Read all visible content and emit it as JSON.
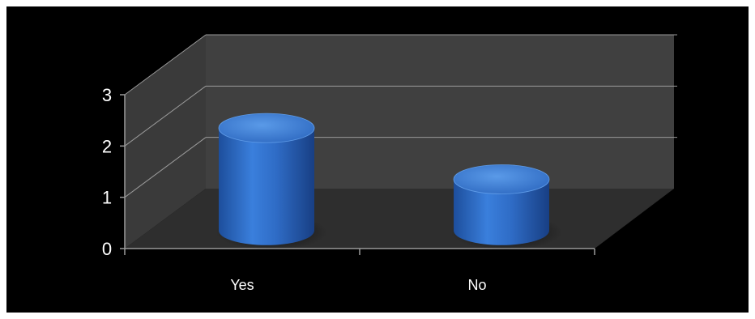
{
  "chart_data": {
    "type": "bar",
    "style": "3d-cylinder",
    "categories": [
      "Yes",
      "No"
    ],
    "values": [
      2,
      1
    ],
    "ylim": [
      0,
      3
    ],
    "yticks": [
      "0",
      "1",
      "2",
      "3"
    ],
    "grid": true,
    "legend": "none",
    "colors": {
      "background": "#000000",
      "bar": "#2f6cc6",
      "bar_top": "#4a8ae0",
      "wall": "#404040",
      "floor": "#303030",
      "gridline": "#9a9a9a"
    }
  }
}
